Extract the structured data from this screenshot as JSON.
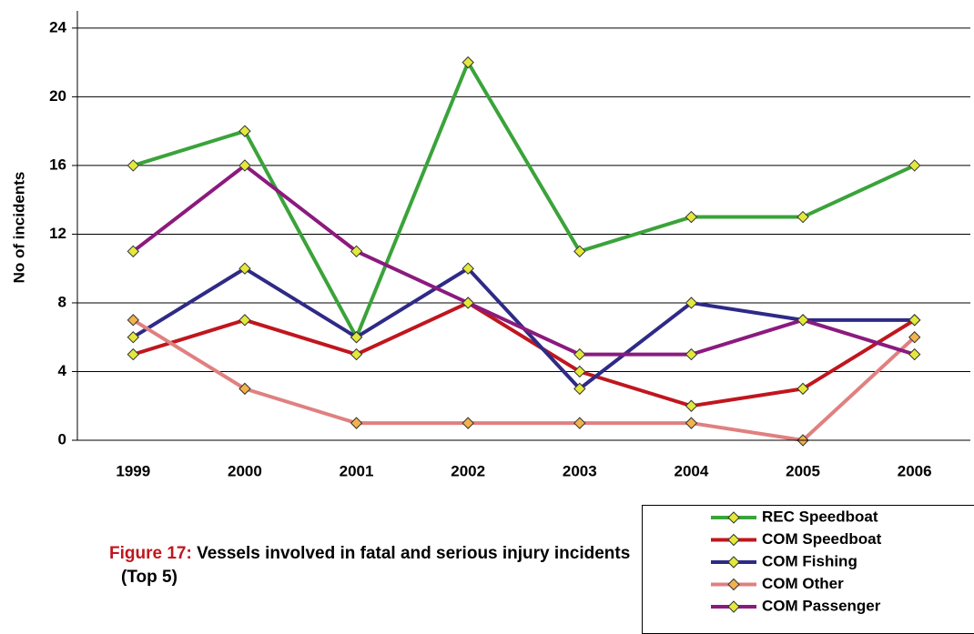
{
  "chart_data": {
    "type": "line",
    "y_label": "No of incidents",
    "categories": [
      "1999",
      "2000",
      "2001",
      "2002",
      "2003",
      "2004",
      "2005",
      "2006"
    ],
    "series": [
      {
        "name": "REC Speedboat",
        "color": "#3aa33a",
        "marker_color": "#e4e83c",
        "values": [
          16,
          18,
          6,
          22,
          11,
          13,
          13,
          16
        ]
      },
      {
        "name": "COM Speedboat",
        "color": "#c0161e",
        "marker_color": "#e4e83c",
        "values": [
          5,
          7,
          5,
          8,
          4,
          2,
          3,
          7
        ]
      },
      {
        "name": "COM Fishing",
        "color": "#2e2a86",
        "marker_color": "#e4e83c",
        "values": [
          6,
          10,
          6,
          10,
          3,
          8,
          7,
          7
        ]
      },
      {
        "name": "COM Other",
        "color": "#e08080",
        "marker_color": "#f2b24c",
        "values": [
          7,
          3,
          1,
          1,
          1,
          1,
          0,
          6
        ]
      },
      {
        "name": "COM Passenger",
        "color": "#8b1a7e",
        "marker_color": "#e4e83c",
        "values": [
          11,
          16,
          11,
          8,
          5,
          5,
          7,
          5
        ]
      }
    ],
    "ylim": [
      0,
      25
    ],
    "yticks": [
      0,
      4,
      8,
      12,
      16,
      20,
      24
    ],
    "grid": true,
    "legend": "bottom-right"
  },
  "figure": {
    "label": "Figure 17:",
    "caption": "Vessels involved in fatal and serious injury incidents (Top 5)"
  }
}
